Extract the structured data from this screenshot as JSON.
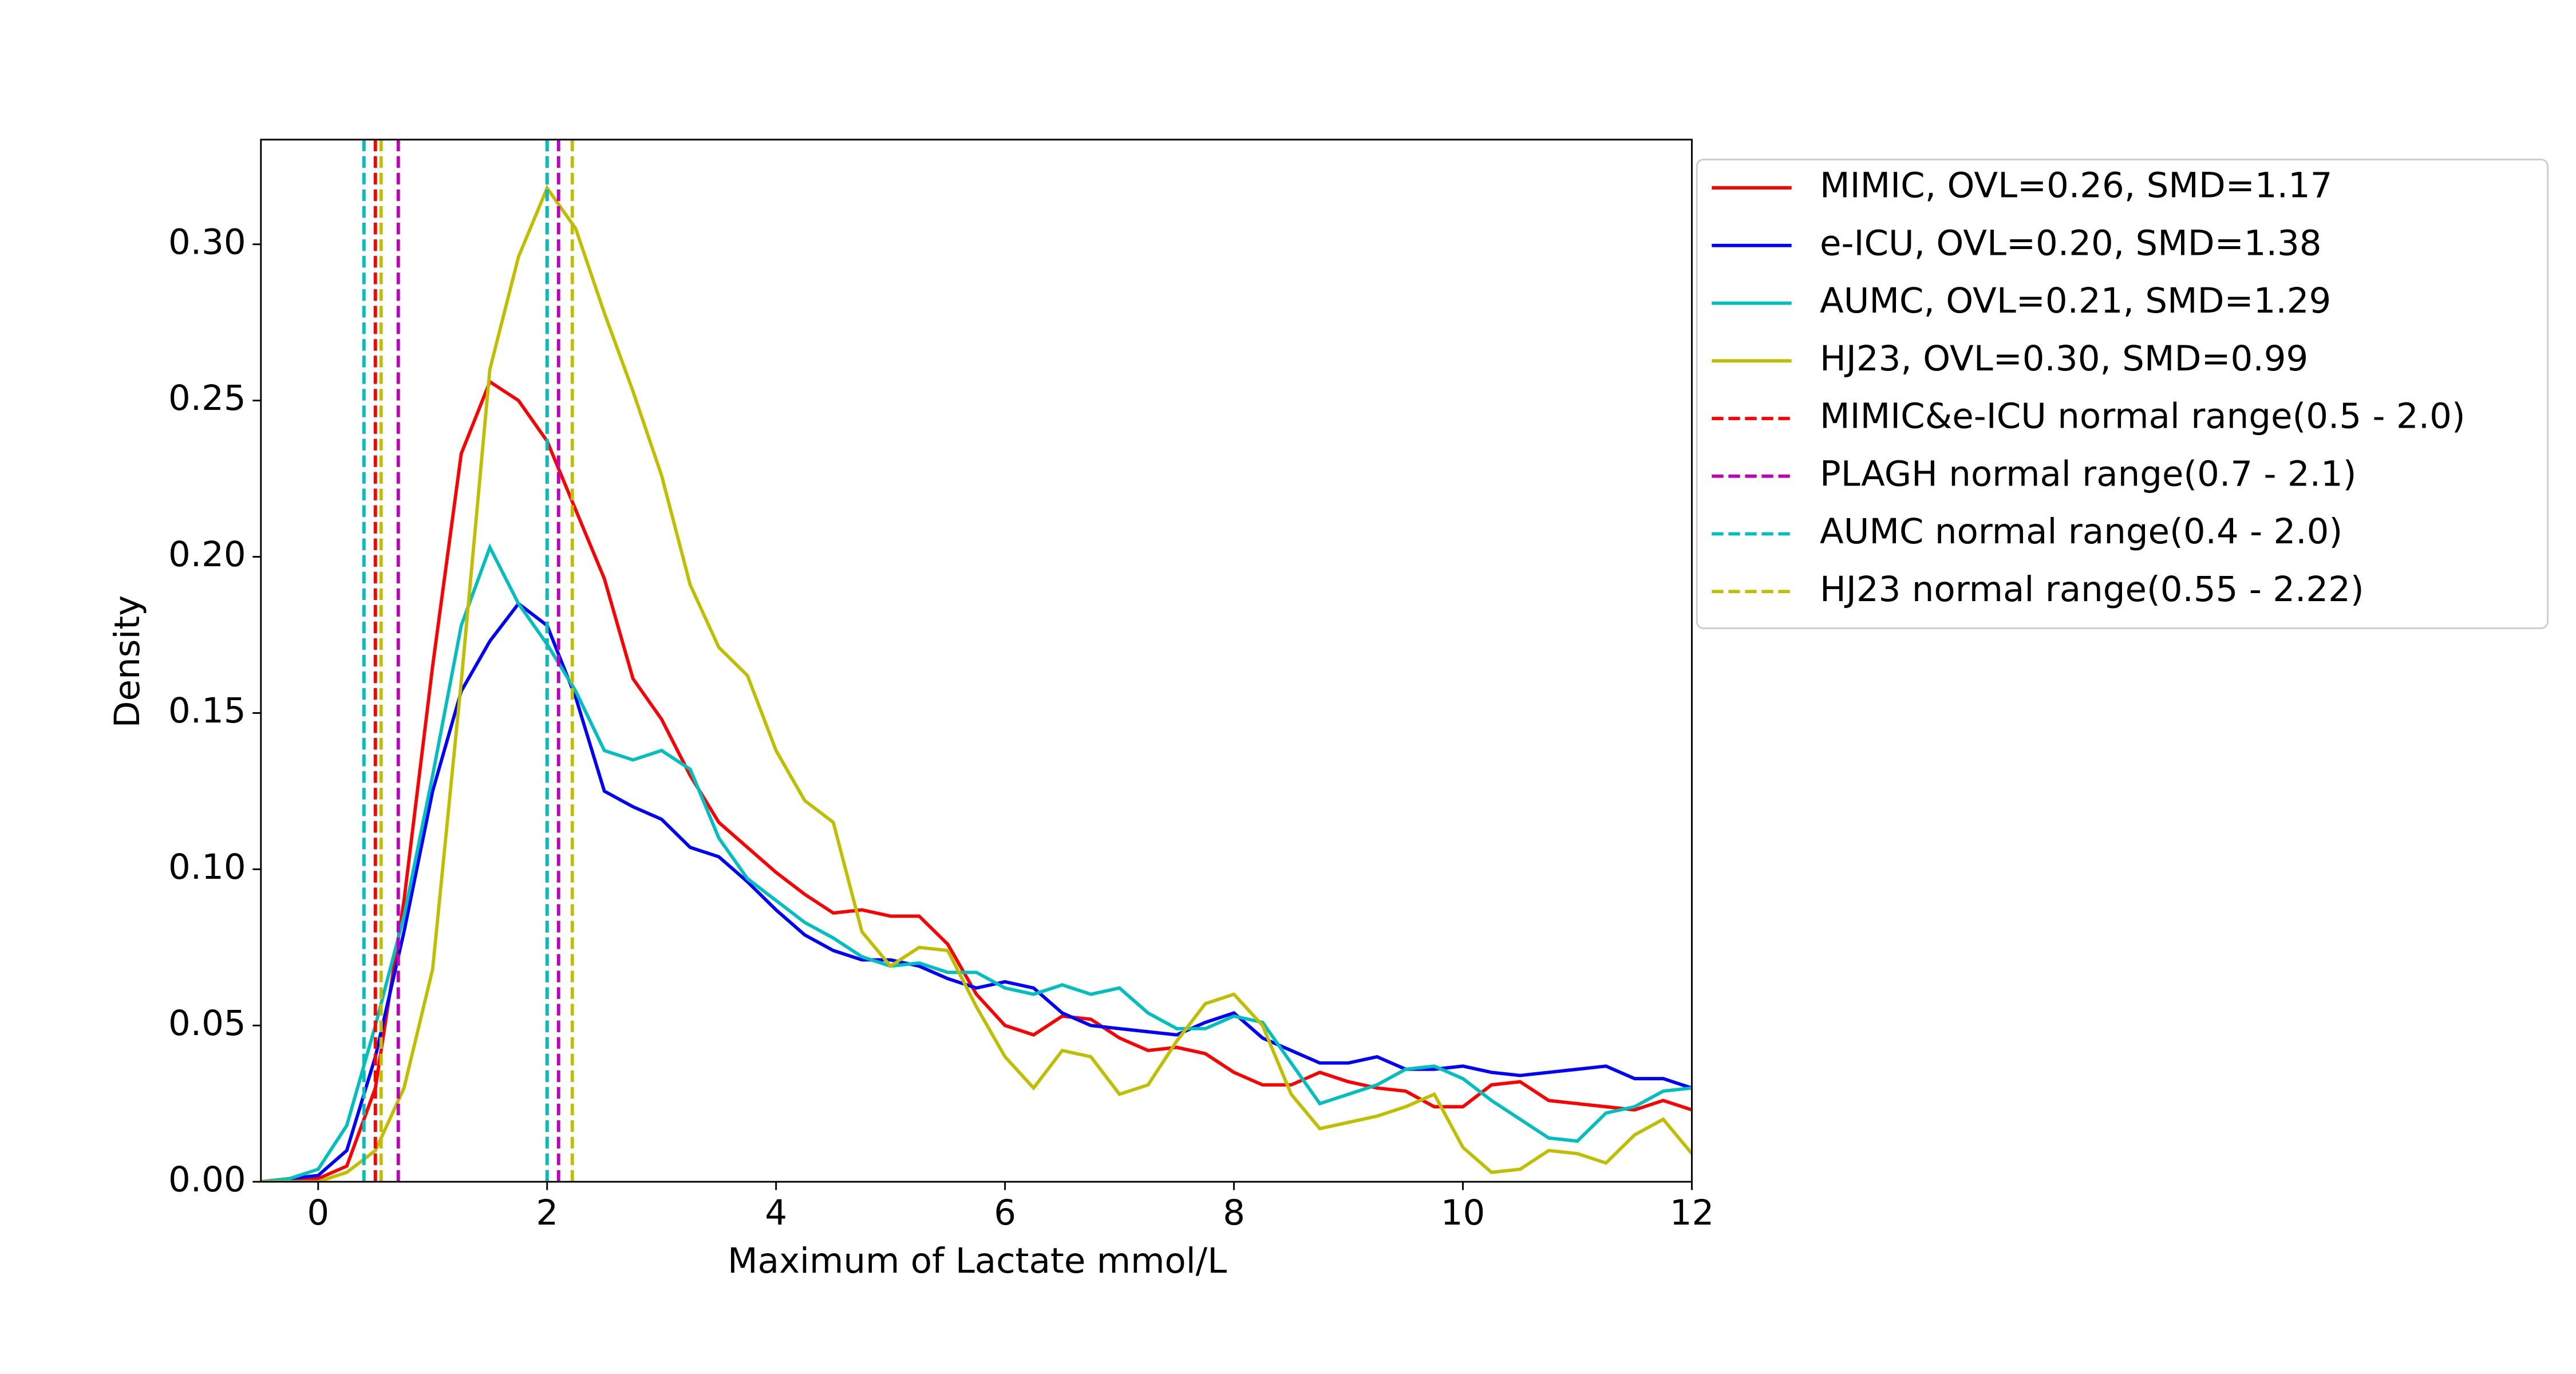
{
  "chart_data": {
    "type": "line",
    "xlabel": "Maximum of Lactate mmol/L",
    "ylabel": "Density",
    "xlim": [
      -0.5,
      12
    ],
    "ylim": [
      0,
      0.3335
    ],
    "xticks": [
      0,
      2,
      4,
      6,
      8,
      10,
      12
    ],
    "yticks": [
      {
        "value": 0,
        "label": "0.00"
      },
      {
        "value": 0.05,
        "label": "0.05"
      },
      {
        "value": 0.1,
        "label": "0.10"
      },
      {
        "value": 0.15,
        "label": "0.15"
      },
      {
        "value": 0.2,
        "label": "0.20"
      },
      {
        "value": 0.25,
        "label": "0.25"
      },
      {
        "value": 0.3,
        "label": "0.30"
      }
    ],
    "legend": "outside-upper-right",
    "x": [
      -0.5,
      -0.25,
      0,
      0.25,
      0.5,
      0.75,
      1,
      1.25,
      1.5,
      1.75,
      2,
      2.25,
      2.5,
      2.75,
      3,
      3.25,
      3.5,
      3.75,
      4,
      4.25,
      4.5,
      4.75,
      5,
      5.25,
      5.5,
      5.75,
      6,
      6.25,
      6.5,
      6.75,
      7,
      7.25,
      7.5,
      7.75,
      8,
      8.25,
      8.5,
      8.75,
      9,
      9.25,
      9.5,
      9.75,
      10,
      10.25,
      10.5,
      10.75,
      11,
      11.25,
      11.5,
      11.75,
      12
    ],
    "series": [
      {
        "name": "MIMIC, OVL=0.26, SMD=1.17",
        "color": "#ff0000",
        "values": [
          0,
          0,
          0.001,
          0.005,
          0.03,
          0.09,
          0.165,
          0.233,
          0.256,
          0.25,
          0.237,
          0.215,
          0.193,
          0.161,
          0.148,
          0.13,
          0.115,
          0.107,
          0.099,
          0.092,
          0.086,
          0.087,
          0.085,
          0.085,
          0.076,
          0.06,
          0.05,
          0.047,
          0.053,
          0.052,
          0.046,
          0.042,
          0.043,
          0.041,
          0.035,
          0.031,
          0.031,
          0.035,
          0.032,
          0.03,
          0.029,
          0.024,
          0.024,
          0.031,
          0.032,
          0.026,
          0.025,
          0.024,
          0.023,
          0.026,
          0.023
        ]
      },
      {
        "name": "e-ICU, OVL=0.20, SMD=1.38",
        "color": "#0000ff",
        "values": [
          0,
          0.001,
          0.002,
          0.01,
          0.04,
          0.08,
          0.125,
          0.157,
          0.173,
          0.185,
          0.178,
          0.155,
          0.125,
          0.12,
          0.116,
          0.107,
          0.104,
          0.096,
          0.087,
          0.079,
          0.074,
          0.071,
          0.071,
          0.069,
          0.065,
          0.062,
          0.064,
          0.062,
          0.054,
          0.05,
          0.049,
          0.048,
          0.047,
          0.051,
          0.054,
          0.046,
          0.042,
          0.038,
          0.038,
          0.04,
          0.036,
          0.036,
          0.037,
          0.035,
          0.034,
          0.035,
          0.036,
          0.037,
          0.033,
          0.033,
          0.03
        ]
      },
      {
        "name": "AUMC, OVL=0.21, SMD=1.29",
        "color": "#00bfbf",
        "values": [
          0,
          0.001,
          0.004,
          0.018,
          0.05,
          0.085,
          0.13,
          0.178,
          0.203,
          0.185,
          0.172,
          0.157,
          0.138,
          0.135,
          0.138,
          0.132,
          0.11,
          0.097,
          0.09,
          0.083,
          0.078,
          0.072,
          0.069,
          0.07,
          0.067,
          0.067,
          0.062,
          0.06,
          0.063,
          0.06,
          0.062,
          0.054,
          0.049,
          0.049,
          0.053,
          0.051,
          0.038,
          0.025,
          0.028,
          0.031,
          0.036,
          0.037,
          0.033,
          0.026,
          0.02,
          0.014,
          0.013,
          0.022,
          0.024,
          0.029,
          0.03
        ]
      },
      {
        "name": "HJ23, OVL=0.30, SMD=0.99",
        "color": "#bfbf00",
        "values": [
          0,
          0,
          0,
          0.003,
          0.01,
          0.03,
          0.068,
          0.16,
          0.26,
          0.296,
          0.318,
          0.305,
          0.278,
          0.253,
          0.226,
          0.191,
          0.171,
          0.162,
          0.138,
          0.122,
          0.115,
          0.08,
          0.069,
          0.075,
          0.074,
          0.056,
          0.04,
          0.03,
          0.042,
          0.04,
          0.028,
          0.031,
          0.045,
          0.057,
          0.06,
          0.05,
          0.028,
          0.017,
          0.019,
          0.021,
          0.024,
          0.028,
          0.011,
          0.003,
          0.004,
          0.01,
          0.009,
          0.006,
          0.015,
          0.02,
          0.009
        ]
      }
    ],
    "reference_lines": [
      {
        "name": "MIMIC&e-ICU normal range(0.5 - 2.0)",
        "color": "#ff0000",
        "values": [
          0.5,
          2.0
        ]
      },
      {
        "name": "PLAGH normal range(0.7 - 2.1)",
        "color": "#bf00bf",
        "values": [
          0.7,
          2.1
        ]
      },
      {
        "name": "AUMC normal range(0.4 - 2.0)",
        "color": "#00bfbf",
        "values": [
          0.4,
          2.0
        ]
      },
      {
        "name": "HJ23 normal range(0.55 - 2.22)",
        "color": "#bfbf00",
        "values": [
          0.55,
          2.22
        ]
      }
    ]
  }
}
